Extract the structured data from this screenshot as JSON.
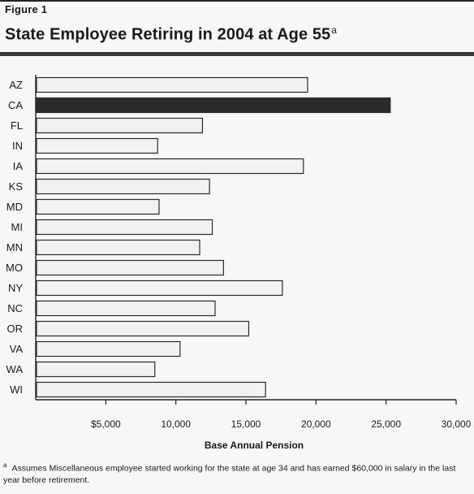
{
  "figure_label": "Figure 1",
  "title": "State Employee Retiring in 2004 at Age 55",
  "title_marker": "a",
  "footnote": {
    "marker": "a",
    "text": "Assumes Miscellaneous employee started working for the state at age 34 and has earned $60,000 in salary in the last year before retirement."
  },
  "chart_data": {
    "type": "bar",
    "orientation": "horizontal",
    "categories": [
      "AZ",
      "CA",
      "FL",
      "IN",
      "IA",
      "KS",
      "MD",
      "MI",
      "MN",
      "MO",
      "NY",
      "NC",
      "OR",
      "VA",
      "WA",
      "WI"
    ],
    "values": [
      19400,
      25300,
      11900,
      8700,
      19100,
      12400,
      8800,
      12600,
      11700,
      13400,
      17600,
      12800,
      15200,
      10300,
      8500,
      16400
    ],
    "highlight": "CA",
    "colors": {
      "bar_fill": "#f1f1f1",
      "bar_stroke": "#2a2a2a",
      "highlight_fill": "#2b2b2b"
    },
    "xlabel": "Base Annual Pension",
    "ylabel": "",
    "xlim": [
      0,
      30000
    ],
    "xticks": [
      5000,
      10000,
      15000,
      20000,
      25000,
      30000
    ],
    "xtick_labels": [
      "$5,000",
      "10,000",
      "15,000",
      "20,000",
      "25,000",
      "30,000"
    ],
    "grid": false,
    "legend": "none"
  }
}
